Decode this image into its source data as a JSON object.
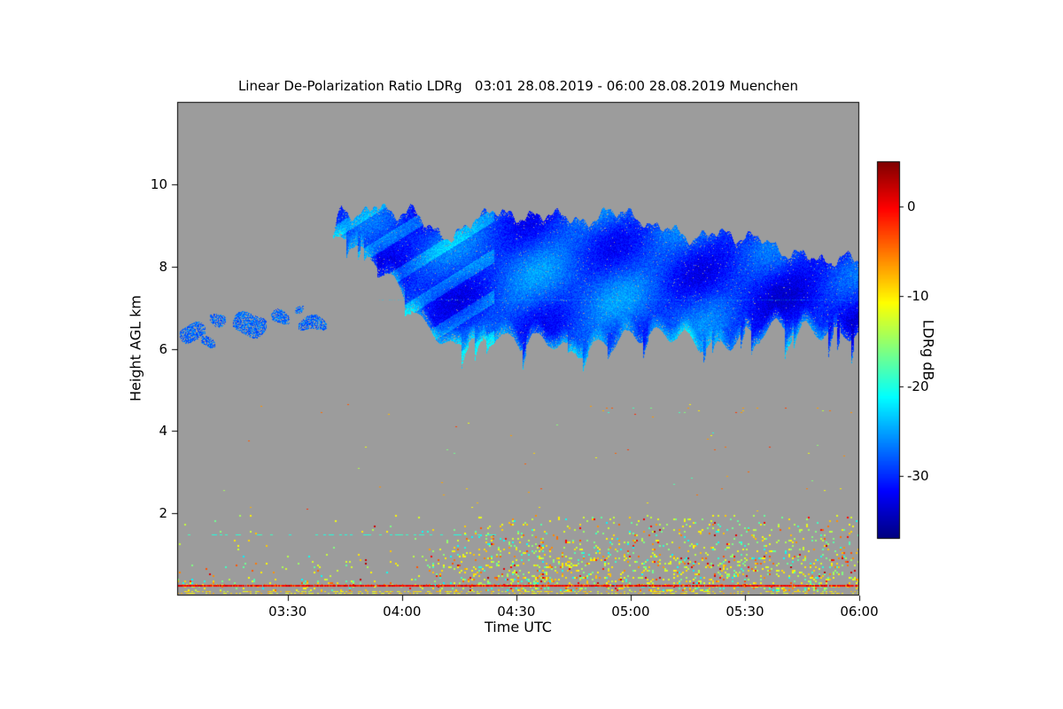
{
  "figure": {
    "background_color": "#ffffff",
    "text_color": "#000000"
  },
  "chart_data": {
    "type": "heatmap",
    "title": "Linear De-Polarization Ratio LDRg   03:01 28.08.2019 - 06:00 28.08.2019 Muenchen",
    "xlabel": "Time UTC",
    "ylabel": "Height AGL km",
    "grid": false,
    "no_data_color": "#9c9c9c",
    "seed": 42,
    "x_axis": {
      "start_min": 181,
      "end_min": 360,
      "ticks": [
        {
          "label": "03:30",
          "min": 210
        },
        {
          "label": "04:00",
          "min": 240
        },
        {
          "label": "04:30",
          "min": 270
        },
        {
          "label": "05:00",
          "min": 300
        },
        {
          "label": "05:30",
          "min": 330
        },
        {
          "label": "06:00",
          "min": 360
        }
      ]
    },
    "y_axis": {
      "min_km": 0,
      "max_km": 12,
      "ticks": [
        {
          "label": "2",
          "km": 2
        },
        {
          "label": "4",
          "km": 4
        },
        {
          "label": "6",
          "km": 6
        },
        {
          "label": "8",
          "km": 8
        },
        {
          "label": "10",
          "km": 10
        }
      ]
    },
    "colorbar": {
      "label": "LDRg dB",
      "colormap": "jet",
      "vmin": -37,
      "vmax": 5,
      "ticks": [
        {
          "label": "0",
          "value": 0
        },
        {
          "label": "-10",
          "value": -10
        },
        {
          "label": "-20",
          "value": -20
        },
        {
          "label": "-30",
          "value": -30
        }
      ]
    },
    "features": {
      "cirrus_cloud": {
        "description": "Cirrus cloud layer ~6-9.5 km from 03:42 to 06:00 UTC, LDRg around -30 dB (blue), brighter -25 dB fall streaks at base and leading edge",
        "value_db_base": -30,
        "edge_value_db": -25,
        "top_km": [
          [
            222,
            8.9
          ],
          [
            224,
            9.55
          ],
          [
            228,
            9.2
          ],
          [
            233,
            9.45
          ],
          [
            238,
            9.1
          ],
          [
            243,
            9.35
          ],
          [
            248,
            8.95
          ],
          [
            253,
            8.8
          ],
          [
            258,
            9.15
          ],
          [
            264,
            9.3
          ],
          [
            270,
            9.05
          ],
          [
            276,
            9.25
          ],
          [
            282,
            9.4
          ],
          [
            288,
            9.1
          ],
          [
            294,
            9.3
          ],
          [
            300,
            9.15
          ],
          [
            305,
            8.9
          ],
          [
            310,
            9.05
          ],
          [
            316,
            8.75
          ],
          [
            322,
            8.9
          ],
          [
            328,
            8.55
          ],
          [
            334,
            8.65
          ],
          [
            340,
            8.35
          ],
          [
            346,
            8.45
          ],
          [
            352,
            8.1
          ],
          [
            356,
            8.2
          ],
          [
            360,
            8.05
          ]
        ],
        "bottom_km": [
          [
            222,
            8.75
          ],
          [
            226,
            8.85
          ],
          [
            230,
            8.3
          ],
          [
            234,
            7.9
          ],
          [
            238,
            7.5
          ],
          [
            242,
            7.0
          ],
          [
            246,
            6.6
          ],
          [
            250,
            6.35
          ],
          [
            254,
            6.2
          ],
          [
            258,
            6.45
          ],
          [
            262,
            6.15
          ],
          [
            266,
            6.35
          ],
          [
            271,
            5.85
          ],
          [
            274,
            6.3
          ],
          [
            278,
            6.05
          ],
          [
            282,
            6.25
          ],
          [
            286,
            5.95
          ],
          [
            290,
            6.3
          ],
          [
            294,
            6.15
          ],
          [
            298,
            6.35
          ],
          [
            302,
            6.1
          ],
          [
            306,
            6.3
          ],
          [
            310,
            6.2
          ],
          [
            314,
            6.4
          ],
          [
            318,
            6.15
          ],
          [
            322,
            6.35
          ],
          [
            326,
            6.2
          ],
          [
            330,
            6.45
          ],
          [
            334,
            6.25
          ],
          [
            338,
            6.5
          ],
          [
            342,
            6.3
          ],
          [
            346,
            6.55
          ],
          [
            350,
            6.4
          ],
          [
            354,
            6.6
          ],
          [
            358,
            6.45
          ],
          [
            360,
            6.5
          ]
        ]
      },
      "left_patches": [
        {
          "t": 185.0,
          "km": 6.4,
          "half_min": 3.5,
          "half_km": 0.22
        },
        {
          "t": 189.0,
          "km": 6.15,
          "half_min": 2.0,
          "half_km": 0.12
        },
        {
          "t": 191.5,
          "km": 6.75,
          "half_min": 2.2,
          "half_km": 0.15
        },
        {
          "t": 200.0,
          "km": 6.6,
          "half_min": 4.5,
          "half_km": 0.28
        },
        {
          "t": 208.0,
          "km": 6.75,
          "half_min": 2.5,
          "half_km": 0.16
        },
        {
          "t": 213.0,
          "km": 7.0,
          "half_min": 1.2,
          "half_km": 0.08
        },
        {
          "t": 216.5,
          "km": 6.6,
          "half_min": 3.8,
          "half_km": 0.17
        }
      ],
      "artifact_line": {
        "km": 7.2,
        "start_min": 234,
        "value_db": -23
      },
      "boundary_layer": {
        "description": "Speckled aerosol/noise below 2 km, dense yellow-green wedge after ~04:03",
        "top_km": 2.0,
        "dense_from_min": 243,
        "value_mix": [
          {
            "p": 0.48,
            "lo": -14,
            "hi": -8
          },
          {
            "p": 0.2,
            "lo": -18,
            "hi": -14
          },
          {
            "p": 0.12,
            "lo": -22,
            "hi": -18
          },
          {
            "p": 0.13,
            "lo": -7,
            "hi": -3
          },
          {
            "p": 0.07,
            "lo": -2,
            "hi": 3
          }
        ]
      },
      "mid_speckles": {
        "description": "Very sparse speckles 2-4.7 km plus intermittent orange dotted line near 4.5 km late in period",
        "top_km": 4.75,
        "density": 0.004,
        "line_km": 4.5,
        "line_from_min": 288,
        "line_density": 0.06,
        "value_mix": [
          {
            "p": 0.5,
            "lo": -12,
            "hi": -6
          },
          {
            "p": 0.3,
            "lo": -7,
            "hi": -2
          },
          {
            "p": 0.2,
            "lo": -20,
            "hi": -13
          }
        ]
      },
      "cyan_line": {
        "km": 1.48,
        "end_min": 266,
        "density": 0.25,
        "value_db": -19.5
      },
      "bottom_strip": {
        "top_km": 0.14,
        "density": 0.4,
        "value_lo": -13,
        "value_hi": -7
      },
      "ground_line": {
        "km": 0.25,
        "value_db": 0
      }
    }
  }
}
